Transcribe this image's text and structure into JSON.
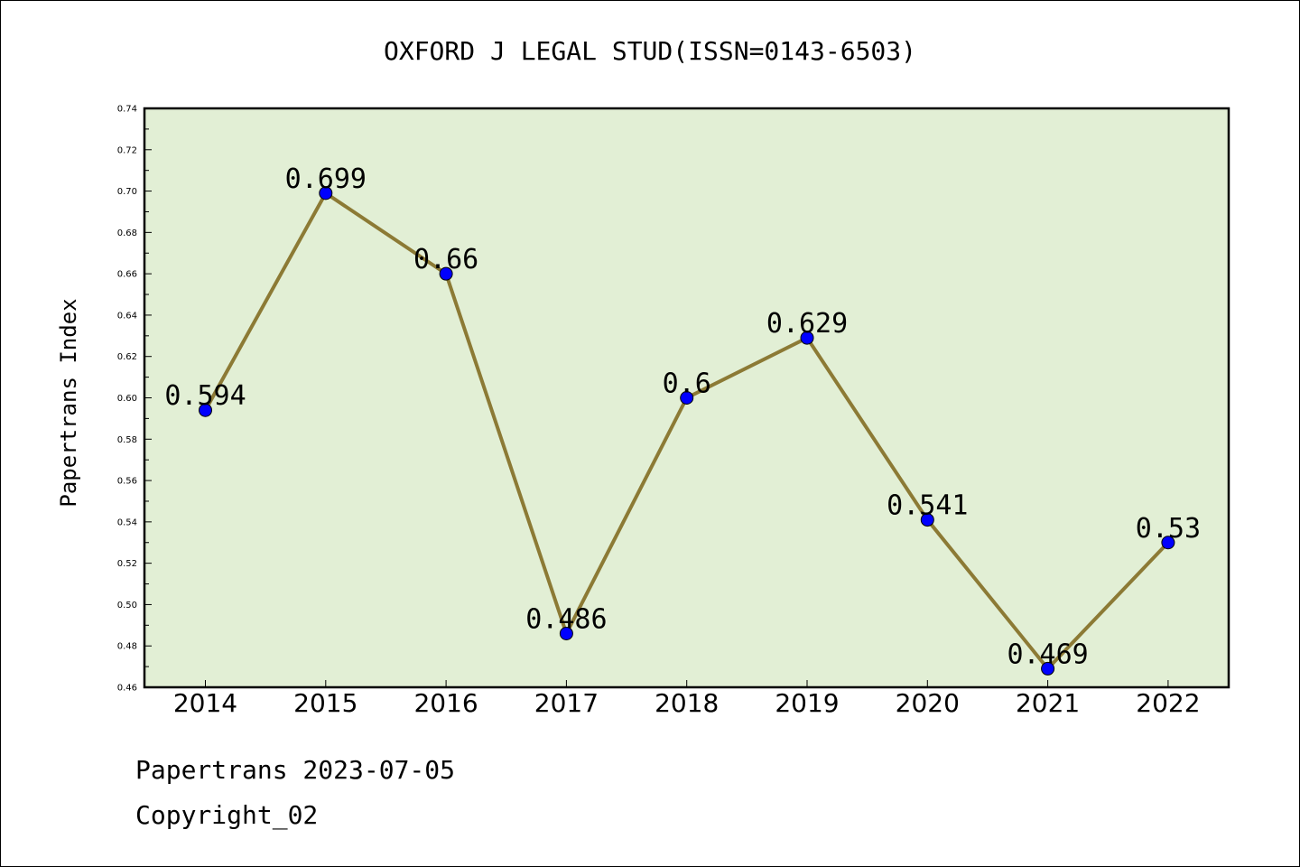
{
  "chart_data": {
    "type": "line",
    "title": "OXFORD J LEGAL STUD(ISSN=0143-6503)",
    "xlabel": "",
    "ylabel": "Papertrans Index",
    "categories": [
      "2014",
      "2015",
      "2016",
      "2017",
      "2018",
      "2019",
      "2020",
      "2021",
      "2022"
    ],
    "series": [
      {
        "values": [
          0.594,
          0.699,
          0.66,
          0.486,
          0.6,
          0.629,
          0.541,
          0.469,
          0.53
        ],
        "labels": [
          "0.594",
          "0.699",
          "0.66",
          "0.486",
          "0.6",
          "0.629",
          "0.541",
          "0.469",
          "0.53"
        ]
      }
    ],
    "ylim": [
      0.46,
      0.74
    ],
    "yticks": [
      "0.46",
      "0.48",
      "0.50",
      "0.52",
      "0.54",
      "0.56",
      "0.58",
      "0.60",
      "0.62",
      "0.64",
      "0.66",
      "0.68",
      "0.70",
      "0.72",
      "0.74"
    ],
    "grid": false,
    "colors": {
      "plot_background": "#e2efd5",
      "line": "#8c7a35",
      "marker": "#0000ff"
    }
  },
  "footer": {
    "source": "Papertrans 2023-07-05",
    "copyright": "Copyright_02"
  }
}
